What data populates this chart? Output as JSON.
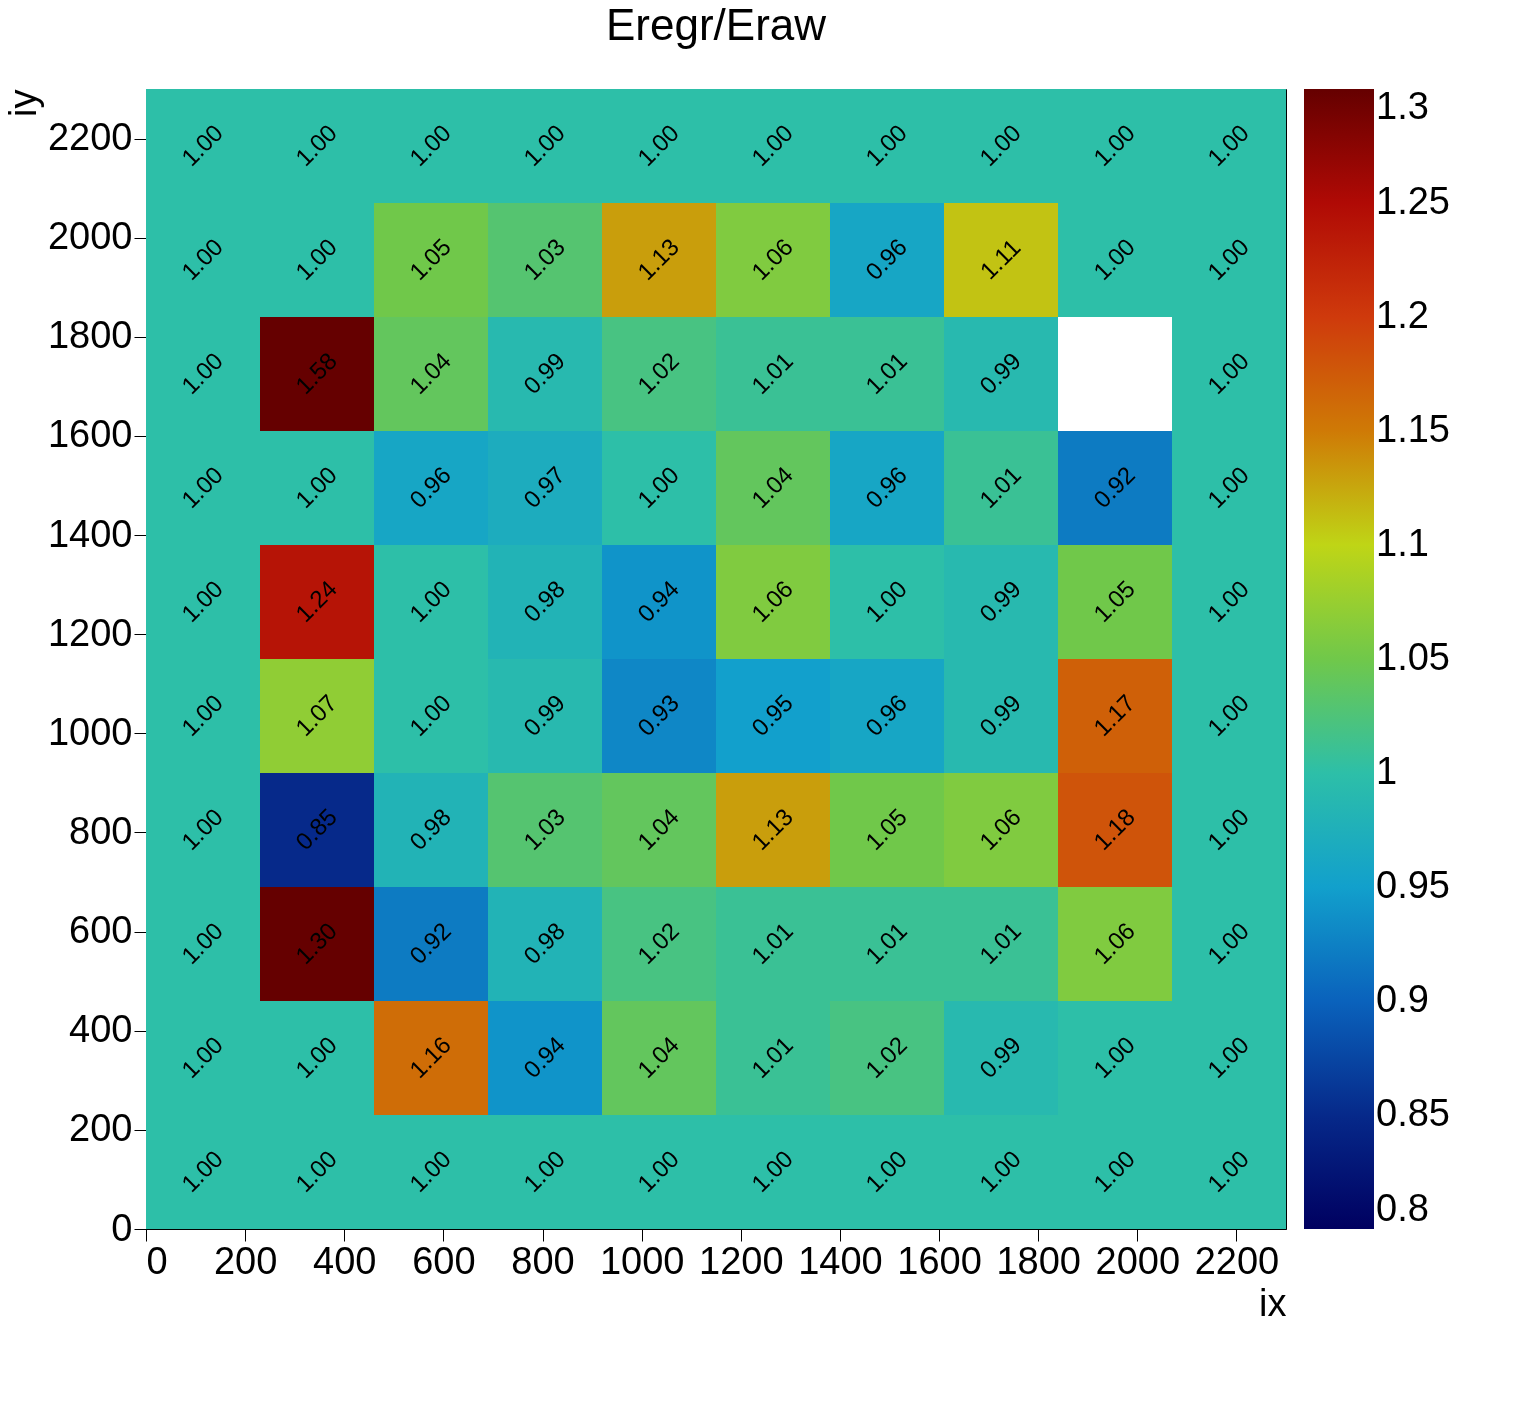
{
  "chart_data": {
    "type": "heatmap",
    "title": "Eregr/Eraw",
    "xlabel": "ix",
    "ylabel": "iy",
    "x": [
      115,
      345,
      575,
      805,
      1035,
      1265,
      1495,
      1725,
      1955,
      2185
    ],
    "y": [
      2185,
      1955,
      1725,
      1495,
      1265,
      1035,
      805,
      575,
      345,
      115
    ],
    "xlim": [
      0,
      2300
    ],
    "ylim": [
      0,
      2300
    ],
    "xticks": [
      0,
      200,
      400,
      600,
      800,
      1000,
      1200,
      1400,
      1600,
      1800,
      2000,
      2200
    ],
    "yticks": [
      0,
      200,
      400,
      600,
      800,
      1000,
      1200,
      1400,
      1600,
      1800,
      2000,
      2200
    ],
    "clim": [
      0.8,
      1.3
    ],
    "cticks": [
      {
        "value": 0.8,
        "label": "0.8"
      },
      {
        "value": 0.85,
        "label": "0.85"
      },
      {
        "value": 0.9,
        "label": "0.9"
      },
      {
        "value": 0.95,
        "label": "0.95"
      },
      {
        "value": 1.0,
        "label": "1"
      },
      {
        "value": 1.05,
        "label": "1.05"
      },
      {
        "value": 1.1,
        "label": "1.1"
      },
      {
        "value": 1.15,
        "label": "1.15"
      },
      {
        "value": 1.2,
        "label": "1.2"
      },
      {
        "value": 1.25,
        "label": "1.25"
      },
      {
        "value": 1.3,
        "label": "1.3"
      }
    ],
    "cells": [
      [
        1.0,
        1.0,
        1.0,
        1.0,
        1.0,
        1.0,
        1.0,
        1.0,
        1.0,
        1.0
      ],
      [
        1.0,
        1.0,
        1.05,
        1.03,
        1.13,
        1.06,
        0.96,
        1.11,
        1.0,
        1.0
      ],
      [
        1.0,
        1.58,
        1.04,
        0.99,
        1.02,
        1.01,
        1.01,
        0.99,
        null,
        1.0
      ],
      [
        1.0,
        1.0,
        0.96,
        0.97,
        1.0,
        1.04,
        0.96,
        1.01,
        0.92,
        1.0
      ],
      [
        1.0,
        1.24,
        1.0,
        0.98,
        0.94,
        1.06,
        1.0,
        0.99,
        1.05,
        1.0
      ],
      [
        1.0,
        1.07,
        1.0,
        0.99,
        0.93,
        0.95,
        0.96,
        0.99,
        1.17,
        1.0
      ],
      [
        1.0,
        0.85,
        0.98,
        1.03,
        1.04,
        1.13,
        1.05,
        1.06,
        1.18,
        1.0
      ],
      [
        1.0,
        1.3,
        0.92,
        0.98,
        1.02,
        1.01,
        1.01,
        1.01,
        1.06,
        1.0
      ],
      [
        1.0,
        1.0,
        1.16,
        0.94,
        1.04,
        1.01,
        1.02,
        0.99,
        1.0,
        1.0
      ],
      [
        1.0,
        1.0,
        1.0,
        1.0,
        1.0,
        1.0,
        1.0,
        1.0,
        1.0,
        1.0
      ]
    ],
    "cell_labels": [
      [
        "1.00",
        "1.00",
        "1.00",
        "1.00",
        "1.00",
        "1.00",
        "1.00",
        "1.00",
        "1.00",
        "1.00"
      ],
      [
        "1.00",
        "1.00",
        "1.05",
        "1.03",
        "1.13",
        "1.06",
        "0.96",
        "1.11",
        "1.00",
        "1.00"
      ],
      [
        "1.00",
        "1.58",
        "1.04",
        "0.99",
        "1.02",
        "1.01",
        "1.01",
        "0.99",
        null,
        "1.00"
      ],
      [
        "1.00",
        "1.00",
        "0.96",
        "0.97",
        "1.00",
        "1.04",
        "0.96",
        "1.01",
        "0.92",
        "1.00"
      ],
      [
        "1.00",
        "1.24",
        "1.00",
        "0.98",
        "0.94",
        "1.06",
        "1.00",
        "0.99",
        "1.05",
        "1.00"
      ],
      [
        "1.00",
        "1.07",
        "1.00",
        "0.99",
        "0.93",
        "0.95",
        "0.96",
        "0.99",
        "1.17",
        "1.00"
      ],
      [
        "1.00",
        "0.85",
        "0.98",
        "1.03",
        "1.04",
        "1.13",
        "1.05",
        "1.06",
        "1.18",
        "1.00"
      ],
      [
        "1.00",
        "1.30",
        "0.92",
        "0.98",
        "1.02",
        "1.01",
        "1.01",
        "1.01",
        "1.06",
        "1.00"
      ],
      [
        "1.00",
        "1.00",
        "1.16",
        "0.94",
        "1.04",
        "1.01",
        "1.02",
        "0.99",
        "1.00",
        "1.00"
      ],
      [
        "1.00",
        "1.00",
        "1.00",
        "1.00",
        "1.00",
        "1.00",
        "1.00",
        "1.00",
        "1.00",
        "1.00"
      ]
    ]
  }
}
